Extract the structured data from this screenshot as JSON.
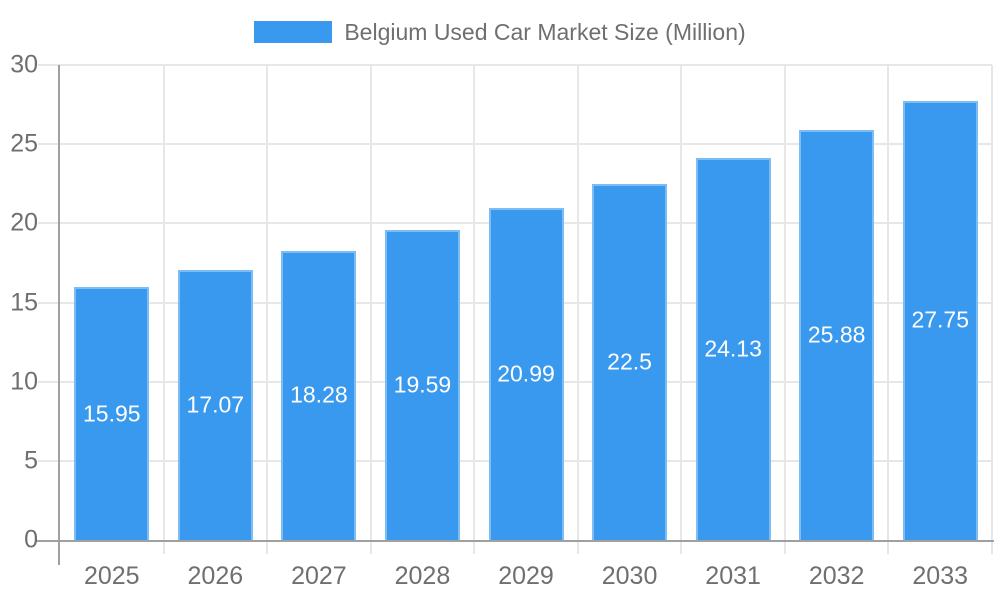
{
  "chart_data": {
    "type": "bar",
    "title": "Belgium Used Car Market Size (Million)",
    "categories": [
      "2025",
      "2026",
      "2027",
      "2028",
      "2029",
      "2030",
      "2031",
      "2032",
      "2033"
    ],
    "values": [
      15.95,
      17.07,
      18.28,
      19.59,
      20.99,
      22.5,
      24.13,
      25.88,
      27.75
    ],
    "value_labels": [
      "15.95",
      "17.07",
      "18.28",
      "19.59",
      "20.99",
      "22.5",
      "24.13",
      "25.88",
      "27.75"
    ],
    "xlabel": "",
    "ylabel": "",
    "ylim": [
      0,
      30
    ],
    "yticks": [
      0,
      5,
      10,
      15,
      20,
      25,
      30
    ],
    "grid": true,
    "legend_position": "top",
    "colors": {
      "bar": "#3999ee",
      "grid": "#e7e7e7",
      "axis": "#a0a0a0",
      "tick_label": "#6f6f6f",
      "data_label": "#ffffff",
      "background": "#ffffff"
    }
  },
  "legend": {
    "label": "Belgium Used Car Market Size (Million)"
  }
}
